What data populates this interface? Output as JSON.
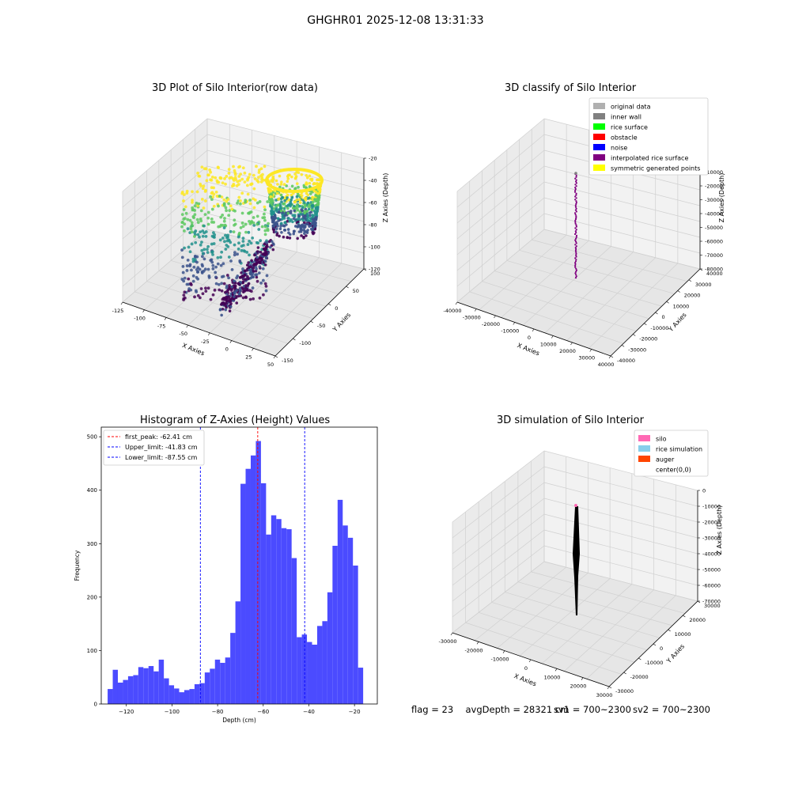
{
  "figure": {
    "suptitle": "GHGHR01 2025-12-08 13:31:33",
    "colors": {
      "hist_bar": "#4b4bff",
      "first_peak": "#ff0000",
      "limits": "#0000ff"
    },
    "status": {
      "flag": "flag = 23",
      "avg_depth": "avgDepth = 28321 cm",
      "sv1": "sv1 = 700~2300",
      "sv2": "sv2 = 700~2300"
    }
  },
  "chart_data": [
    {
      "type": "scatter",
      "title": "3D Plot of Silo Interior(row data)",
      "xlabel": "X Axies",
      "ylabel": "Y Axies",
      "zlabel": "Z Axies (Depth)",
      "x_ticks": [
        -125,
        -100,
        -75,
        -50,
        -25,
        0,
        25,
        50
      ],
      "y_ticks": [
        -150,
        -100,
        -50,
        0,
        50,
        100
      ],
      "z_ticks": [
        -20,
        -40,
        -60,
        -80,
        -100,
        -120
      ],
      "xlim": [
        -125,
        50
      ],
      "ylim": [
        -150,
        100
      ],
      "zlim": [
        -130,
        -15
      ],
      "colormap": "viridis",
      "grid": true
    },
    {
      "type": "scatter",
      "title": "3D classify of Silo Interior",
      "xlabel": "X Axies",
      "ylabel": "Y Axies",
      "zlabel": "Z Axies (Depth)",
      "x_ticks": [
        -40000,
        -30000,
        -20000,
        -10000,
        0,
        10000,
        20000,
        30000,
        40000
      ],
      "y_ticks": [
        -40000,
        -30000,
        -20000,
        -10000,
        0,
        10000,
        20000,
        30000,
        40000
      ],
      "z_ticks": [
        0,
        -10000,
        -20000,
        -30000,
        -40000,
        -50000,
        -60000,
        -70000,
        -80000
      ],
      "legend": [
        {
          "label": "original data",
          "color": "#b0b0b0"
        },
        {
          "label": "inner wall",
          "color": "#808080"
        },
        {
          "label": "rice surface",
          "color": "#00ff00"
        },
        {
          "label": "obstacle",
          "color": "#ff0000"
        },
        {
          "label": "noise",
          "color": "#0000ff"
        },
        {
          "label": "interpolated rice surface",
          "color": "#800080"
        },
        {
          "label": "symmetric generated points",
          "color": "#ffff00"
        }
      ],
      "legend_loc": "upper right",
      "grid": true
    },
    {
      "type": "bar",
      "title": "Histogram of Z-Axies (Height) Values",
      "xlabel": "Depth (cm)",
      "ylabel": "Frequency",
      "x_ticks": [
        -120,
        -100,
        -80,
        -60,
        -40,
        -20
      ],
      "y_ticks": [
        0,
        100,
        200,
        300,
        400,
        500
      ],
      "xlim": [
        -131,
        -10
      ],
      "ylim": [
        0,
        518
      ],
      "bin_start": -128.2,
      "bin_width": 2.24,
      "values": [
        28,
        64,
        40,
        45,
        52,
        54,
        69,
        67,
        71,
        61,
        83,
        48,
        35,
        29,
        22,
        26,
        28,
        37,
        39,
        59,
        66,
        83,
        77,
        87,
        133,
        192,
        412,
        440,
        465,
        492,
        413,
        317,
        353,
        346,
        329,
        327,
        273,
        125,
        130,
        116,
        111,
        146,
        155,
        209,
        296,
        382,
        334,
        311,
        259,
        68
      ],
      "lines": [
        {
          "label": "first_peak: -62.41 cm",
          "value": -62.41,
          "color": "#ff0000"
        },
        {
          "label": "Upper_limit: -41.83 cm",
          "value": -41.83,
          "color": "#0000ff"
        },
        {
          "label": "Lower_limit: -87.55 cm",
          "value": -87.55,
          "color": "#0000ff"
        }
      ],
      "legend_loc": "upper left",
      "grid": false
    },
    {
      "type": "scatter",
      "title": "3D simulation of Silo Interior",
      "xlabel": "X Axies",
      "ylabel": "Y Axies",
      "zlabel": "Z Axies (Depth)",
      "x_ticks": [
        -30000,
        -20000,
        -10000,
        0,
        10000,
        20000,
        30000
      ],
      "y_ticks": [
        -30000,
        -20000,
        -10000,
        0,
        10000,
        20000,
        30000
      ],
      "z_ticks": [
        0,
        -10000,
        -20000,
        -30000,
        -40000,
        -50000,
        -60000,
        -70000
      ],
      "legend": [
        {
          "label": "silo",
          "color": "#ff69b4"
        },
        {
          "label": "rice simulation",
          "color": "#87ceeb"
        },
        {
          "label": "auger",
          "color": "#ff4500"
        },
        {
          "label": "center(0,0)",
          "color": ""
        }
      ],
      "legend_loc": "upper right",
      "grid": true
    }
  ]
}
